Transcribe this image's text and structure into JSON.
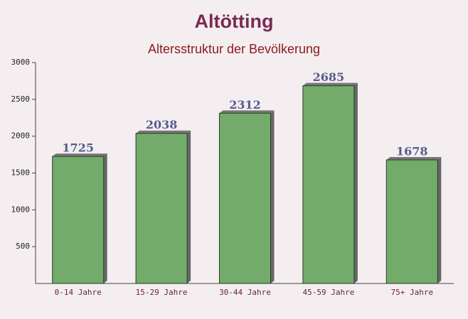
{
  "chart_data": {
    "type": "bar",
    "title": "Altötting",
    "subtitle": "Altersstruktur der Bevölkerung",
    "categories": [
      "0-14 Jahre",
      "15-29 Jahre",
      "30-44 Jahre",
      "45-59 Jahre",
      "75+ Jahre"
    ],
    "values": [
      1725,
      2038,
      2312,
      2685,
      1678
    ],
    "color": "#6aa662",
    "ylim": [
      0,
      3000
    ],
    "yticks": [
      500,
      1000,
      1500,
      2000,
      2500,
      3000
    ],
    "grid": false
  }
}
